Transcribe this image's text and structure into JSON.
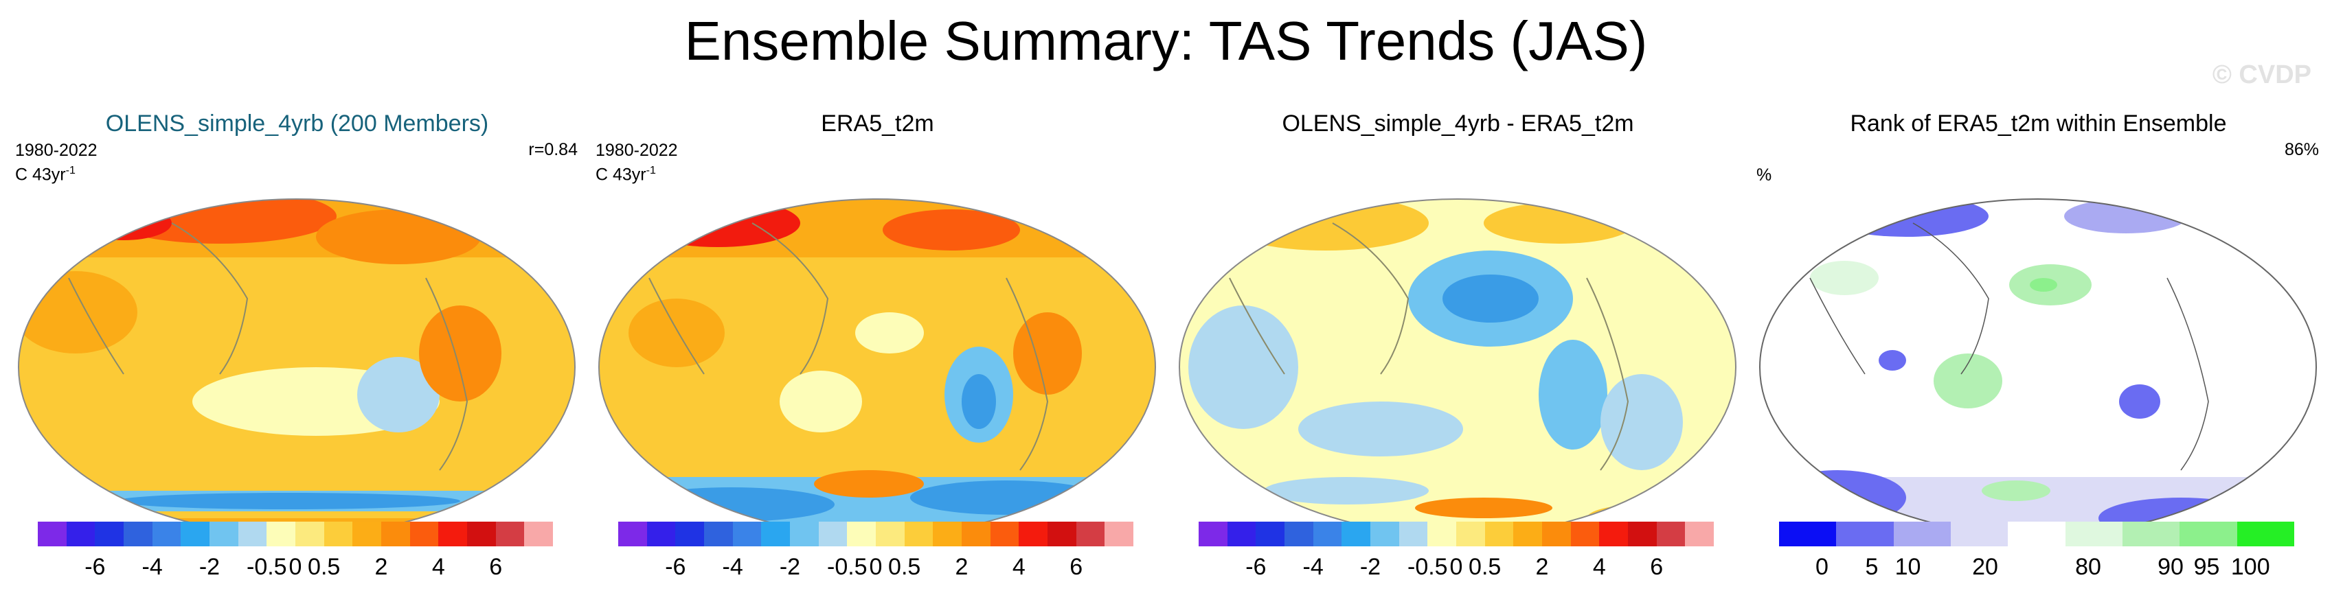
{
  "figure": {
    "title": "Ensemble Summary: TAS Trends (JAS)",
    "watermark": "© CVDP"
  },
  "panels": [
    {
      "title": "OLENS_simple_4yrb (200 Members)",
      "period": "1980-2022",
      "units": "C 43yr",
      "units_exp": "-1",
      "stat": "r=0.84",
      "colorbar": {
        "colors": [
          "#7d29e8",
          "#3420ea",
          "#1f33e4",
          "#2f62de",
          "#3a83e8",
          "#2aa6f0",
          "#70c4f0",
          "#b0d9f0",
          "#fdfdb8",
          "#fcea7e",
          "#fccd3a",
          "#fcad16",
          "#fb8c0c",
          "#fb5c0d",
          "#f41b0d",
          "#d21010",
          "#d43d44",
          "#f8a8a8"
        ],
        "tick_labels": [
          "-6",
          "-4",
          "-2",
          "-0.5",
          "0",
          "0.5",
          "2",
          "4",
          "6"
        ]
      }
    },
    {
      "title": "ERA5_t2m",
      "period": "1980-2022",
      "units": "C 43yr",
      "units_exp": "-1",
      "colorbar": {
        "colors": [
          "#7d29e8",
          "#3420ea",
          "#1f33e4",
          "#2f62de",
          "#3a83e8",
          "#2aa6f0",
          "#70c4f0",
          "#b0d9f0",
          "#fdfdb8",
          "#fcea7e",
          "#fccd3a",
          "#fcad16",
          "#fb8c0c",
          "#fb5c0d",
          "#f41b0d",
          "#d21010",
          "#d43d44",
          "#f8a8a8"
        ],
        "tick_labels": [
          "-6",
          "-4",
          "-2",
          "-0.5",
          "0",
          "0.5",
          "2",
          "4",
          "6"
        ]
      }
    },
    {
      "title": "OLENS_simple_4yrb - ERA5_t2m",
      "colorbar": {
        "colors": [
          "#7d29e8",
          "#3420ea",
          "#1f33e4",
          "#2f62de",
          "#3a83e8",
          "#2aa6f0",
          "#70c4f0",
          "#b0d9f0",
          "#fdfdb8",
          "#fcea7e",
          "#fccd3a",
          "#fcad16",
          "#fb8c0c",
          "#fb5c0d",
          "#f41b0d",
          "#d21010",
          "#d43d44",
          "#f8a8a8"
        ],
        "tick_labels": [
          "-6",
          "-4",
          "-2",
          "-0.5",
          "0",
          "0.5",
          "2",
          "4",
          "6"
        ]
      }
    },
    {
      "title": "Rank of ERA5_t2m within Ensemble",
      "units": "%",
      "stat": "86%",
      "colorbar": {
        "colors": [
          "#0b0ef5",
          "#6a6cf2",
          "#aaaaf2",
          "#dcdcf6",
          "#ffffff",
          "#dff8df",
          "#b3f0b3",
          "#8cf08c",
          "#25ef25"
        ],
        "tick_labels": [
          "0",
          "5",
          "10",
          "20",
          "80",
          "90",
          "95",
          "100"
        ]
      }
    }
  ]
}
